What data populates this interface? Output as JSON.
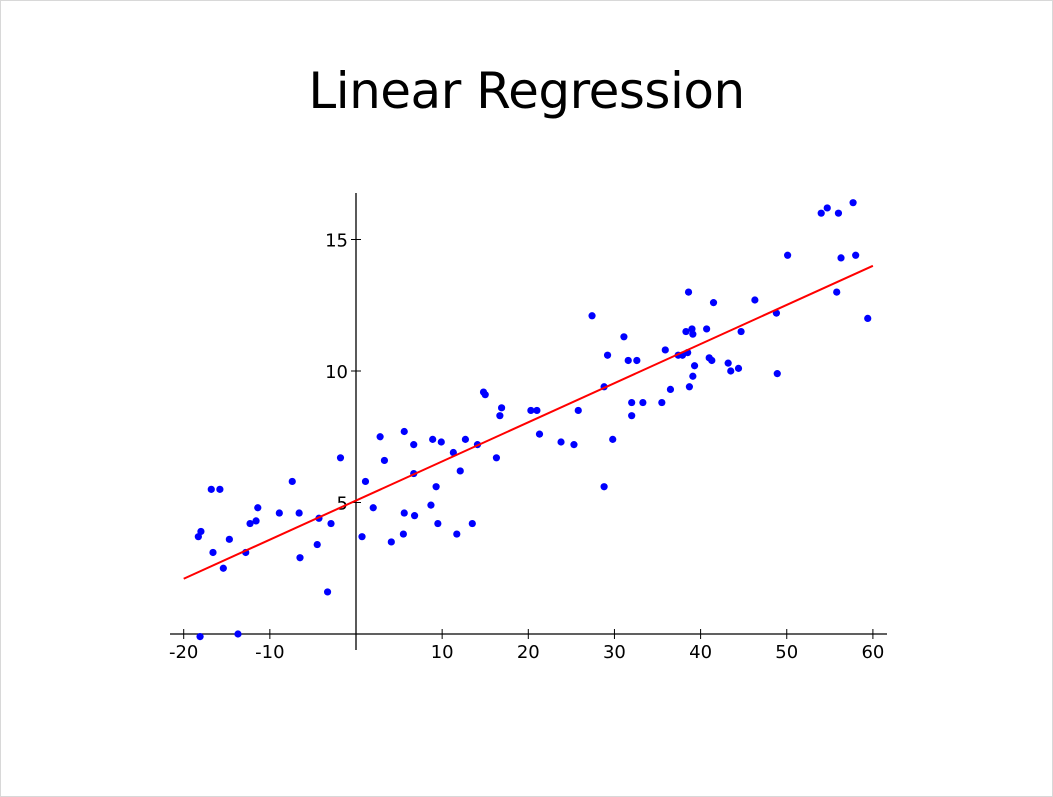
{
  "slide": {
    "title": "Linear Regression"
  },
  "colors": {
    "points": "#0000ff",
    "fit_line": "#ff0000",
    "axes": "#000000"
  },
  "chart_data": {
    "type": "scatter",
    "title": "",
    "xlabel": "",
    "ylabel": "",
    "xlim": [
      -20,
      60
    ],
    "ylim": [
      0,
      16.5
    ],
    "grid": false,
    "x_ticks": [
      -20,
      -10,
      10,
      20,
      30,
      40,
      50,
      60
    ],
    "x_tick_labels": [
      "-20",
      "-10",
      "10",
      "20",
      "30",
      "40",
      "50",
      "60"
    ],
    "y_ticks": [
      5,
      10,
      15
    ],
    "y_tick_labels": [
      "5",
      "10",
      "15"
    ],
    "series": [
      {
        "points": [
          [
            -18.3,
            3.7
          ],
          [
            -18.0,
            3.9
          ],
          [
            -16.8,
            5.5
          ],
          [
            -16.6,
            3.1
          ],
          [
            -15.8,
            5.5
          ],
          [
            -15.4,
            2.5
          ],
          [
            -14.7,
            3.6
          ],
          [
            -12.8,
            3.1
          ],
          [
            -12.3,
            4.2
          ],
          [
            -11.6,
            4.3
          ],
          [
            -11.4,
            4.8
          ],
          [
            -8.9,
            4.6
          ],
          [
            -7.4,
            5.8
          ],
          [
            -6.6,
            4.6
          ],
          [
            -6.5,
            2.9
          ],
          [
            -4.5,
            3.4
          ],
          [
            -4.3,
            4.4
          ],
          [
            -3.3,
            1.6
          ],
          [
            -2.9,
            4.2
          ],
          [
            -1.8,
            6.7
          ],
          [
            0.7,
            3.7
          ],
          [
            1.1,
            5.8
          ],
          [
            2.0,
            4.8
          ],
          [
            2.8,
            7.5
          ],
          [
            3.3,
            6.6
          ],
          [
            4.1,
            3.5
          ],
          [
            5.6,
            7.7
          ],
          [
            5.6,
            4.6
          ],
          [
            5.5,
            3.8
          ],
          [
            6.7,
            7.2
          ],
          [
            6.8,
            4.5
          ],
          [
            6.7,
            6.1
          ],
          [
            8.7,
            4.9
          ],
          [
            8.9,
            7.4
          ],
          [
            9.3,
            5.6
          ],
          [
            9.5,
            4.2
          ],
          [
            9.9,
            7.3
          ],
          [
            11.3,
            6.9
          ],
          [
            11.7,
            3.8
          ],
          [
            12.1,
            6.2
          ],
          [
            12.7,
            7.4
          ],
          [
            13.5,
            4.2
          ],
          [
            14.1,
            7.2
          ],
          [
            14.8,
            9.2
          ],
          [
            15.0,
            9.1
          ],
          [
            16.3,
            6.7
          ],
          [
            16.7,
            8.3
          ],
          [
            16.9,
            8.6
          ],
          [
            20.3,
            8.5
          ],
          [
            21.0,
            8.5
          ],
          [
            21.3,
            7.6
          ],
          [
            23.8,
            7.3
          ],
          [
            25.3,
            7.2
          ],
          [
            25.8,
            8.5
          ],
          [
            27.4,
            12.1
          ],
          [
            28.8,
            5.6
          ],
          [
            28.8,
            9.4
          ],
          [
            29.2,
            10.6
          ],
          [
            29.8,
            7.4
          ],
          [
            31.1,
            11.3
          ],
          [
            31.6,
            10.4
          ],
          [
            32.0,
            8.8
          ],
          [
            32.0,
            8.3
          ],
          [
            32.6,
            10.4
          ],
          [
            33.3,
            8.8
          ],
          [
            35.5,
            8.8
          ],
          [
            35.9,
            10.8
          ],
          [
            36.5,
            9.3
          ],
          [
            37.4,
            10.6
          ],
          [
            37.9,
            10.6
          ],
          [
            38.3,
            11.5
          ],
          [
            38.5,
            10.7
          ],
          [
            38.6,
            13.0
          ],
          [
            38.7,
            9.4
          ],
          [
            39.0,
            11.6
          ],
          [
            39.1,
            9.8
          ],
          [
            39.1,
            11.4
          ],
          [
            39.3,
            10.2
          ],
          [
            40.7,
            11.6
          ],
          [
            41.0,
            10.5
          ],
          [
            41.3,
            10.4
          ],
          [
            41.5,
            12.6
          ],
          [
            43.2,
            10.3
          ],
          [
            43.5,
            10.0
          ],
          [
            44.4,
            10.1
          ],
          [
            44.7,
            11.5
          ],
          [
            46.3,
            12.7
          ],
          [
            48.8,
            12.2
          ],
          [
            48.9,
            9.9
          ],
          [
            50.1,
            14.4
          ],
          [
            54.0,
            16.0
          ],
          [
            54.7,
            16.2
          ],
          [
            55.8,
            13.0
          ],
          [
            56.0,
            16.0
          ],
          [
            56.3,
            14.3
          ],
          [
            57.7,
            16.4
          ],
          [
            58.0,
            14.4
          ],
          [
            59.4,
            12.0
          ],
          [
            -18.1,
            -0.1
          ],
          [
            -13.7,
            0.0
          ]
        ]
      }
    ],
    "fit_line": {
      "x": [
        -20,
        60
      ],
      "y": [
        2.1,
        14.0
      ]
    }
  }
}
